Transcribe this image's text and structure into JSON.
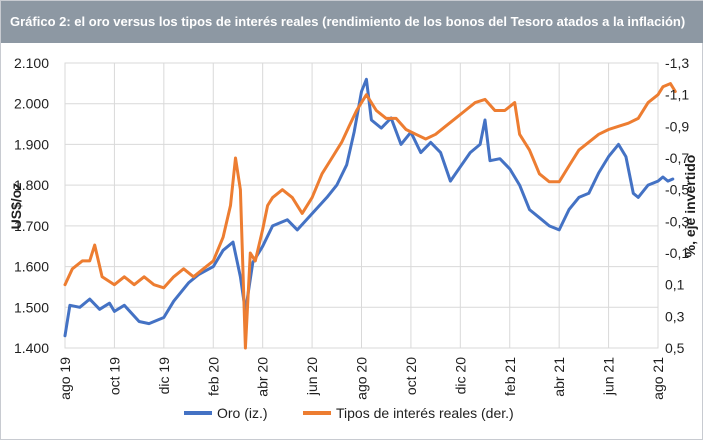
{
  "header": {
    "title": "Gráfico 2: el oro versus los tipos de interés reales (rendimiento de los bonos del Tesoro atados a la inflación)"
  },
  "colors": {
    "header_bg": "#8d98a3",
    "gold_line": "#4472c4",
    "rates_line": "#ed7d31",
    "grid": "#d9d9d9"
  },
  "chart_data": {
    "type": "line",
    "title": "",
    "x_labels": [
      "ago 19",
      "oct 19",
      "dic 19",
      "feb 20",
      "abr 20",
      "jun 20",
      "ago 20",
      "oct 20",
      "dic 20",
      "feb 21",
      "abr 21",
      "jun 21",
      "ago 21"
    ],
    "ylabel_left": "US$/oz",
    "ylabel_right": "%, eje invertido",
    "left_axis": {
      "min": 1400,
      "max": 2100,
      "ticks": [
        "1.400",
        "1.500",
        "1.600",
        "1.700",
        "1.800",
        "1.900",
        "2.000",
        "2.100"
      ]
    },
    "right_axis": {
      "min": -1.3,
      "max": 0.5,
      "inverted": true,
      "ticks": [
        "0,5",
        "0,3",
        "0,1",
        "-0,1",
        "-0,3",
        "-0,5",
        "-0,7",
        "-0,9",
        "-1,1",
        "-1,3"
      ]
    },
    "grid": true,
    "legend_position": "bottom",
    "series": [
      {
        "name": "Oro (iz.)",
        "axis": "left",
        "points": [
          [
            0,
            1430
          ],
          [
            0.1,
            1505
          ],
          [
            0.3,
            1500
          ],
          [
            0.5,
            1520
          ],
          [
            0.7,
            1495
          ],
          [
            0.9,
            1510
          ],
          [
            1.0,
            1490
          ],
          [
            1.2,
            1505
          ],
          [
            1.5,
            1465
          ],
          [
            1.7,
            1460
          ],
          [
            2.0,
            1475
          ],
          [
            2.2,
            1515
          ],
          [
            2.5,
            1560
          ],
          [
            2.7,
            1580
          ],
          [
            3.0,
            1600
          ],
          [
            3.2,
            1640
          ],
          [
            3.4,
            1660
          ],
          [
            3.55,
            1575
          ],
          [
            3.65,
            1490
          ],
          [
            3.8,
            1610
          ],
          [
            4.0,
            1650
          ],
          [
            4.2,
            1700
          ],
          [
            4.5,
            1715
          ],
          [
            4.7,
            1690
          ],
          [
            5.0,
            1730
          ],
          [
            5.3,
            1770
          ],
          [
            5.5,
            1800
          ],
          [
            5.7,
            1850
          ],
          [
            5.85,
            1930
          ],
          [
            6.0,
            2030
          ],
          [
            6.1,
            2060
          ],
          [
            6.2,
            1960
          ],
          [
            6.4,
            1940
          ],
          [
            6.6,
            1965
          ],
          [
            6.8,
            1900
          ],
          [
            7.0,
            1930
          ],
          [
            7.2,
            1880
          ],
          [
            7.4,
            1905
          ],
          [
            7.6,
            1880
          ],
          [
            7.8,
            1810
          ],
          [
            8.0,
            1845
          ],
          [
            8.2,
            1880
          ],
          [
            8.4,
            1900
          ],
          [
            8.5,
            1960
          ],
          [
            8.6,
            1860
          ],
          [
            8.8,
            1865
          ],
          [
            9.0,
            1840
          ],
          [
            9.2,
            1800
          ],
          [
            9.4,
            1740
          ],
          [
            9.6,
            1720
          ],
          [
            9.8,
            1700
          ],
          [
            10.0,
            1690
          ],
          [
            10.2,
            1740
          ],
          [
            10.4,
            1770
          ],
          [
            10.6,
            1780
          ],
          [
            10.8,
            1830
          ],
          [
            11.0,
            1870
          ],
          [
            11.2,
            1900
          ],
          [
            11.35,
            1870
          ],
          [
            11.5,
            1780
          ],
          [
            11.6,
            1770
          ],
          [
            11.8,
            1800
          ],
          [
            12.0,
            1810
          ],
          [
            12.1,
            1820
          ],
          [
            12.2,
            1810
          ],
          [
            12.3,
            1815
          ]
        ]
      },
      {
        "name": "Tipos de interés reales (der.)",
        "axis": "right",
        "points": [
          [
            0,
            0.1
          ],
          [
            0.15,
            0.0
          ],
          [
            0.35,
            -0.05
          ],
          [
            0.5,
            -0.05
          ],
          [
            0.6,
            -0.15
          ],
          [
            0.75,
            0.05
          ],
          [
            1.0,
            0.1
          ],
          [
            1.2,
            0.05
          ],
          [
            1.4,
            0.1
          ],
          [
            1.6,
            0.05
          ],
          [
            1.8,
            0.1
          ],
          [
            2.0,
            0.12
          ],
          [
            2.2,
            0.05
          ],
          [
            2.4,
            0.0
          ],
          [
            2.6,
            0.05
          ],
          [
            2.8,
            0.0
          ],
          [
            3.0,
            -0.05
          ],
          [
            3.2,
            -0.2
          ],
          [
            3.35,
            -0.4
          ],
          [
            3.45,
            -0.7
          ],
          [
            3.55,
            -0.5
          ],
          [
            3.6,
            0.0
          ],
          [
            3.65,
            0.5
          ],
          [
            3.75,
            -0.1
          ],
          [
            3.85,
            -0.05
          ],
          [
            4.0,
            -0.25
          ],
          [
            4.1,
            -0.4
          ],
          [
            4.2,
            -0.45
          ],
          [
            4.4,
            -0.5
          ],
          [
            4.6,
            -0.45
          ],
          [
            4.8,
            -0.35
          ],
          [
            5.0,
            -0.45
          ],
          [
            5.2,
            -0.6
          ],
          [
            5.4,
            -0.7
          ],
          [
            5.6,
            -0.8
          ],
          [
            5.75,
            -0.9
          ],
          [
            5.9,
            -1.0
          ],
          [
            6.0,
            -1.05
          ],
          [
            6.1,
            -1.1
          ],
          [
            6.3,
            -1.0
          ],
          [
            6.5,
            -0.95
          ],
          [
            6.7,
            -0.95
          ],
          [
            6.9,
            -0.88
          ],
          [
            7.1,
            -0.85
          ],
          [
            7.3,
            -0.82
          ],
          [
            7.5,
            -0.85
          ],
          [
            7.7,
            -0.9
          ],
          [
            7.9,
            -0.95
          ],
          [
            8.1,
            -1.0
          ],
          [
            8.3,
            -1.05
          ],
          [
            8.5,
            -1.07
          ],
          [
            8.7,
            -1.0
          ],
          [
            8.9,
            -1.0
          ],
          [
            9.1,
            -1.05
          ],
          [
            9.2,
            -0.85
          ],
          [
            9.4,
            -0.75
          ],
          [
            9.6,
            -0.6
          ],
          [
            9.8,
            -0.55
          ],
          [
            10.0,
            -0.55
          ],
          [
            10.2,
            -0.65
          ],
          [
            10.4,
            -0.75
          ],
          [
            10.6,
            -0.8
          ],
          [
            10.8,
            -0.85
          ],
          [
            11.0,
            -0.88
          ],
          [
            11.2,
            -0.9
          ],
          [
            11.4,
            -0.92
          ],
          [
            11.6,
            -0.95
          ],
          [
            11.8,
            -1.05
          ],
          [
            12.0,
            -1.1
          ],
          [
            12.1,
            -1.15
          ],
          [
            12.25,
            -1.17
          ],
          [
            12.35,
            -1.12
          ]
        ]
      }
    ]
  }
}
